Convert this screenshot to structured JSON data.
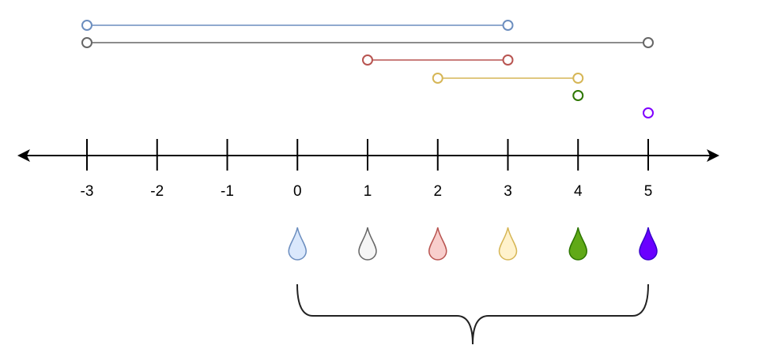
{
  "number_line": {
    "ticks": [
      -3,
      -2,
      -1,
      0,
      1,
      2,
      3,
      4,
      5
    ]
  },
  "intervals": [
    {
      "start": -3,
      "end": 3,
      "color": "#6c8ebf"
    },
    {
      "start": -3,
      "end": 5,
      "color": "#666666"
    },
    {
      "start": 1,
      "end": 3,
      "color": "#b85450"
    },
    {
      "start": 2,
      "end": 4,
      "color": "#d6b656"
    },
    {
      "start": 4,
      "end": 4,
      "color": "#2d7600"
    },
    {
      "start": 5,
      "end": 5,
      "color": "#7f00ff"
    }
  ],
  "drops": [
    {
      "fill": "#dae8fc",
      "stroke": "#6c8ebf"
    },
    {
      "fill": "#f5f5f5",
      "stroke": "#666666"
    },
    {
      "fill": "#f8cecc",
      "stroke": "#b85450"
    },
    {
      "fill": "#fff2cc",
      "stroke": "#d6b656"
    },
    {
      "fill": "#60a917",
      "stroke": "#2d7600"
    },
    {
      "fill": "#6a00ff",
      "stroke": "#3700cc"
    }
  ]
}
